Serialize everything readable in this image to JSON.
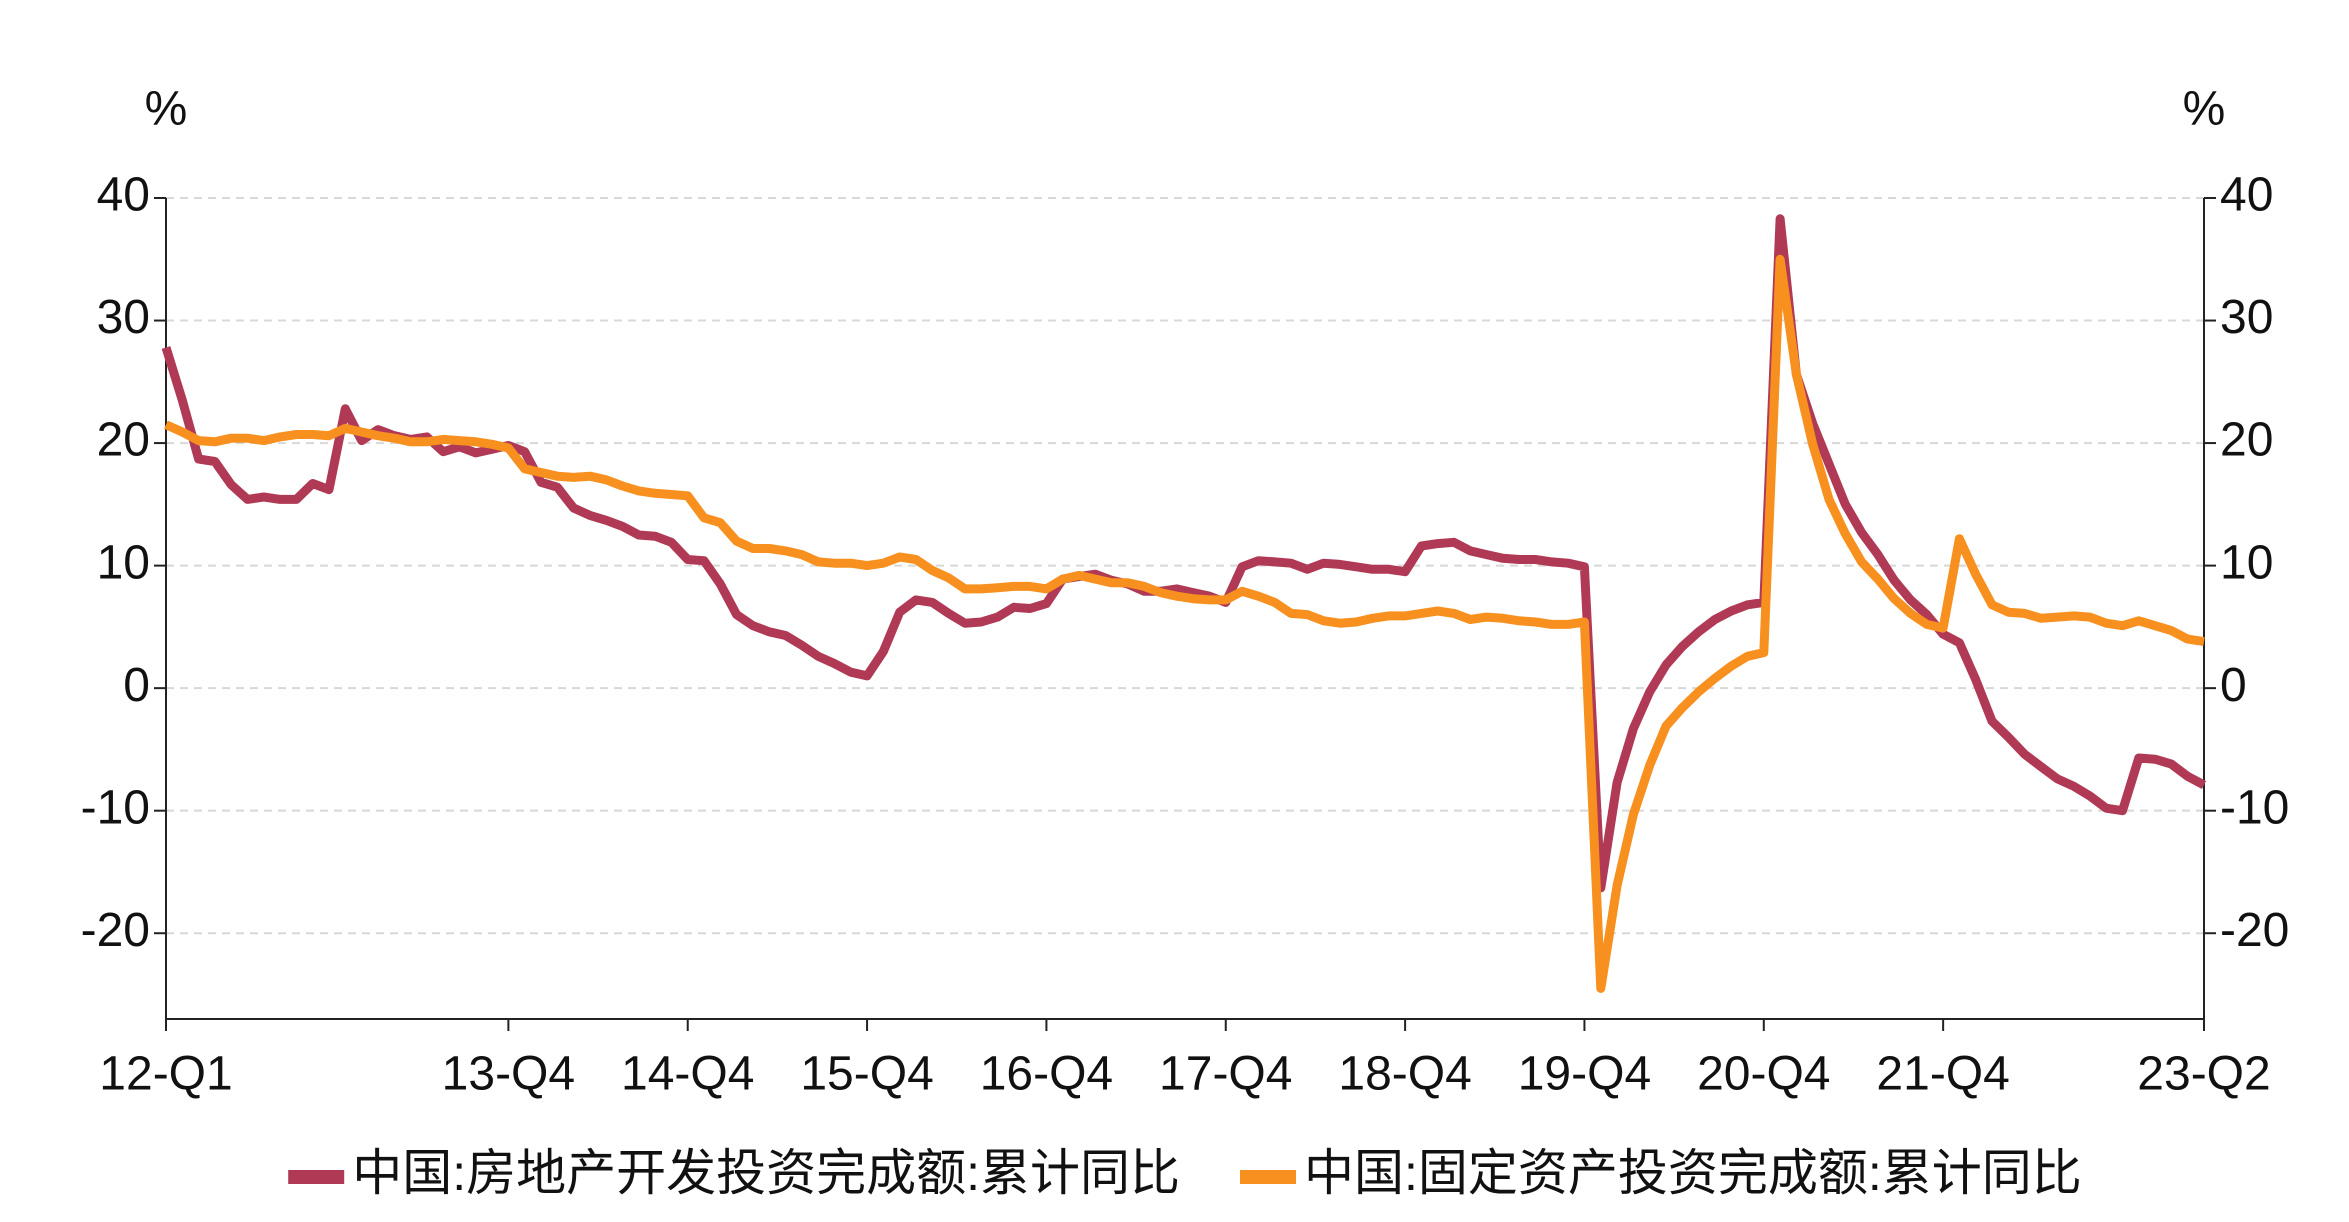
{
  "chart_data": {
    "type": "line",
    "y_unit": "%",
    "y2_unit": "%",
    "categories": [
      "12-Q1",
      null,
      null,
      null,
      null,
      null,
      null,
      null,
      null,
      null,
      null,
      null,
      null,
      null,
      null,
      null,
      null,
      null,
      null,
      null,
      null,
      "13-Q4",
      null,
      null,
      null,
      null,
      null,
      null,
      null,
      null,
      null,
      null,
      "14-Q4",
      null,
      null,
      null,
      null,
      null,
      null,
      null,
      null,
      null,
      null,
      "15-Q4",
      null,
      null,
      null,
      null,
      null,
      null,
      null,
      null,
      null,
      null,
      "16-Q4",
      null,
      null,
      null,
      null,
      null,
      null,
      null,
      null,
      null,
      null,
      "17-Q4",
      null,
      null,
      null,
      null,
      null,
      null,
      null,
      null,
      null,
      null,
      "18-Q4",
      null,
      null,
      null,
      null,
      null,
      null,
      null,
      null,
      null,
      null,
      "19-Q4",
      null,
      null,
      null,
      null,
      null,
      null,
      null,
      null,
      null,
      null,
      "20-Q4",
      null,
      null,
      null,
      null,
      null,
      null,
      null,
      null,
      null,
      null,
      "21-Q4",
      null,
      null,
      null,
      null,
      null,
      null,
      null,
      null,
      null,
      null,
      null,
      null,
      null,
      null,
      null,
      "23-Q2"
    ],
    "series": [
      {
        "name": "中国:房地产开发投资完成额:累计同比",
        "color": "#b03a55",
        "values": [
          27.8,
          23.5,
          18.7,
          18.5,
          16.6,
          15.4,
          15.6,
          15.4,
          15.4,
          16.7,
          16.2,
          22.8,
          20.2,
          21.1,
          20.6,
          20.3,
          20.5,
          19.3,
          19.7,
          19.2,
          19.5,
          19.8,
          19.3,
          16.8,
          16.4,
          14.7,
          14.1,
          13.7,
          13.2,
          12.5,
          12.4,
          11.9,
          10.5,
          10.4,
          8.5,
          6.0,
          5.1,
          4.6,
          4.3,
          3.5,
          2.6,
          2.0,
          1.3,
          1.0,
          3.0,
          6.2,
          7.2,
          7.0,
          6.1,
          5.3,
          5.4,
          5.8,
          6.6,
          6.5,
          6.9,
          8.9,
          9.1,
          9.3,
          8.8,
          8.5,
          7.9,
          7.9,
          8.1,
          7.8,
          7.5,
          7.0,
          9.9,
          10.4,
          10.3,
          10.2,
          9.7,
          10.2,
          10.1,
          9.9,
          9.7,
          9.7,
          9.5,
          11.6,
          11.8,
          11.9,
          11.2,
          10.9,
          10.6,
          10.5,
          10.5,
          10.3,
          10.2,
          9.9,
          -16.3,
          -7.7,
          -3.3,
          -0.3,
          1.9,
          3.4,
          4.6,
          5.6,
          6.3,
          6.8,
          7.0,
          38.3,
          25.6,
          21.6,
          18.3,
          15.0,
          12.7,
          10.9,
          8.8,
          7.2,
          6.0,
          4.4,
          3.7,
          0.7,
          -2.7,
          -4.0,
          -5.4,
          -6.4,
          -7.4,
          -8.0,
          -8.8,
          -9.8,
          -10.0,
          -5.7,
          -5.8,
          -6.2,
          -7.2,
          -7.9
        ]
      },
      {
        "name": "中国:固定资产投资完成额:累计同比",
        "color": "#f7901e",
        "values": [
          21.5,
          20.9,
          20.2,
          20.1,
          20.4,
          20.4,
          20.2,
          20.5,
          20.7,
          20.7,
          20.6,
          21.2,
          20.9,
          20.6,
          20.4,
          20.1,
          20.1,
          20.3,
          20.2,
          20.1,
          19.9,
          19.6,
          17.9,
          17.6,
          17.3,
          17.2,
          17.3,
          17.0,
          16.5,
          16.1,
          15.9,
          15.8,
          15.7,
          13.9,
          13.5,
          12.0,
          11.4,
          11.4,
          11.2,
          10.9,
          10.3,
          10.2,
          10.2,
          10.0,
          10.2,
          10.7,
          10.5,
          9.6,
          9.0,
          8.1,
          8.1,
          8.2,
          8.3,
          8.3,
          8.1,
          8.9,
          9.2,
          8.9,
          8.6,
          8.6,
          8.3,
          7.8,
          7.5,
          7.3,
          7.2,
          7.2,
          7.9,
          7.5,
          7.0,
          6.1,
          6.0,
          5.5,
          5.3,
          5.4,
          5.7,
          5.9,
          5.9,
          6.1,
          6.3,
          6.1,
          5.6,
          5.8,
          5.7,
          5.5,
          5.4,
          5.2,
          5.2,
          5.4,
          -24.5,
          -16.1,
          -10.3,
          -6.3,
          -3.1,
          -1.6,
          -0.3,
          0.8,
          1.8,
          2.6,
          2.9,
          35.0,
          25.6,
          19.9,
          15.4,
          12.6,
          10.3,
          8.9,
          7.3,
          6.1,
          5.2,
          4.9,
          12.2,
          9.3,
          6.8,
          6.2,
          6.1,
          5.7,
          5.8,
          5.9,
          5.8,
          5.3,
          5.1,
          5.5,
          5.1,
          4.7,
          4.0,
          3.8
        ]
      }
    ],
    "ylim": [
      -27,
      40
    ],
    "yticks": [
      -20,
      -10,
      0,
      10,
      20,
      30,
      40
    ],
    "y2lim": [
      -27,
      40
    ],
    "y2ticks": [
      -20,
      -10,
      0,
      10,
      20,
      30,
      40
    ],
    "grid": true,
    "legend": "bottom"
  }
}
